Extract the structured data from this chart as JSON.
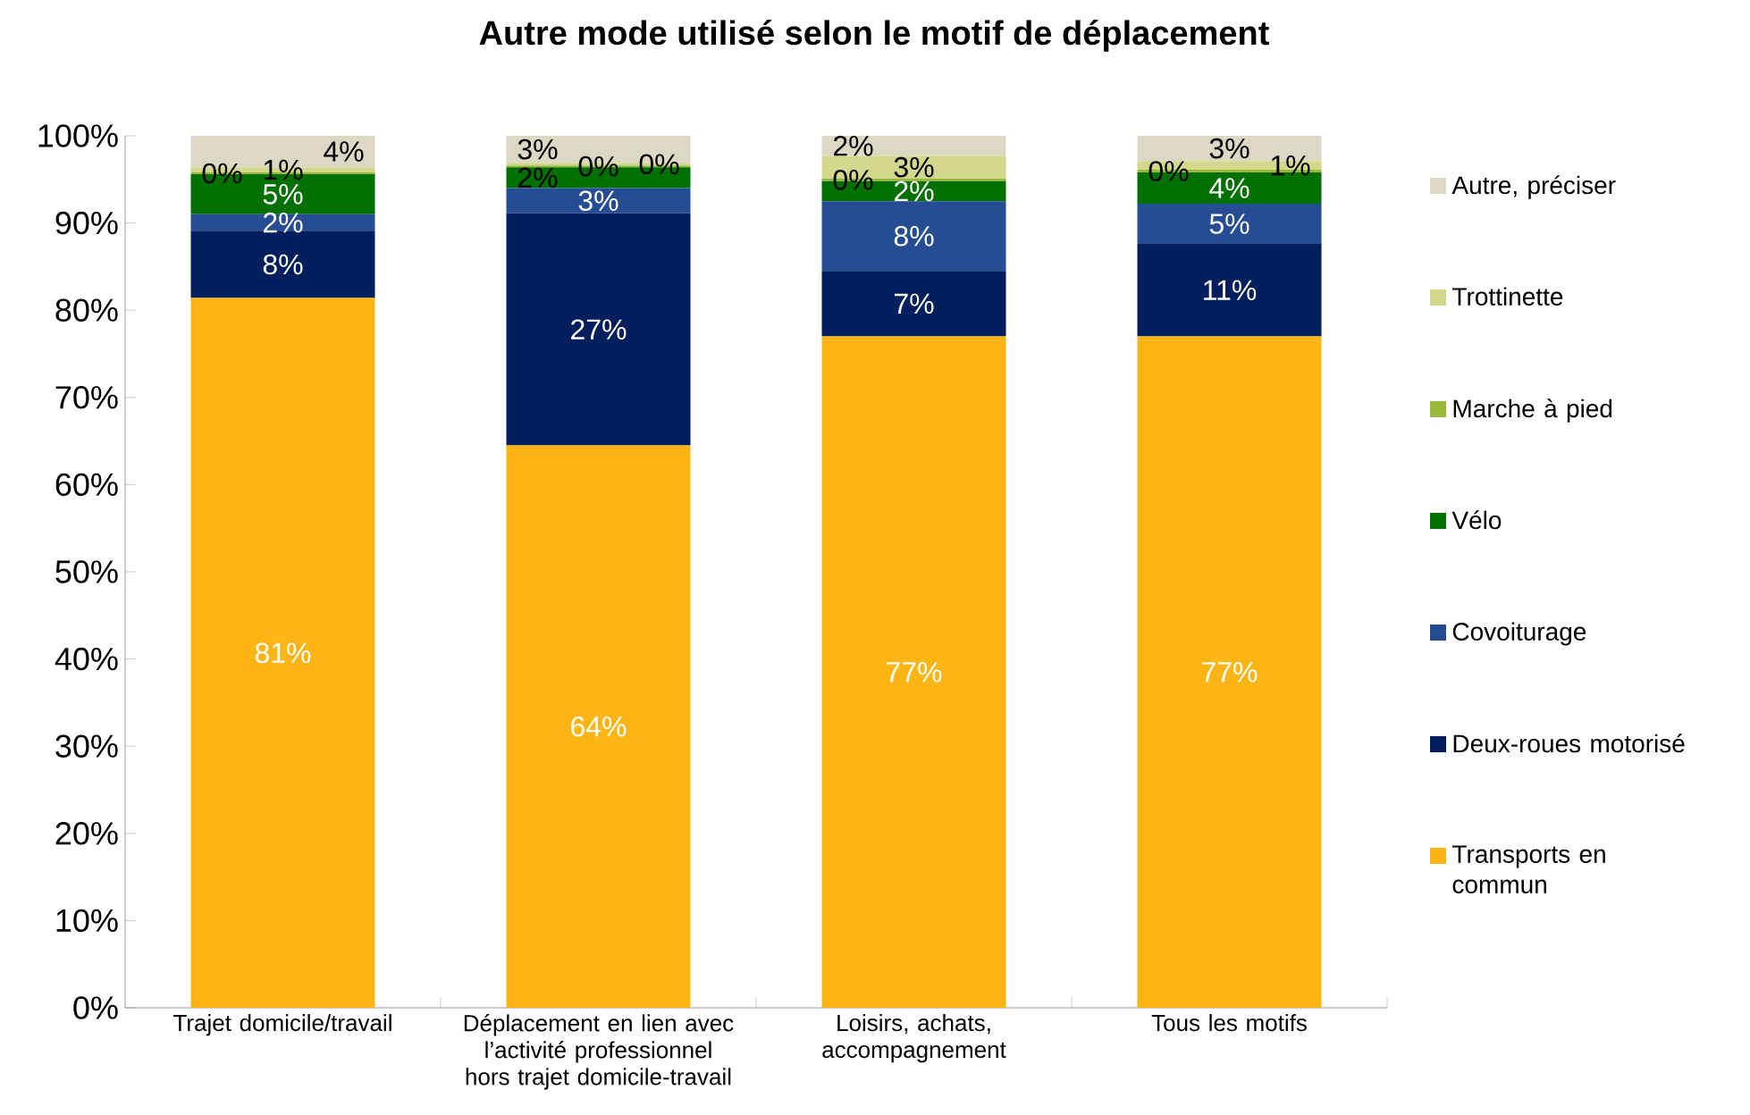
{
  "chart_data": {
    "type": "bar",
    "stacked": true,
    "title": "Autre mode utilisé selon le motif de déplacement",
    "categories": [
      "Trajet domicile/travail",
      "Déplacement en lien avec l’activité professionnel hors trajet domicile-travail",
      "Loisirs, achats, accompagnement",
      "Tous les motifs"
    ],
    "series": [
      {
        "name": "Transports en commun",
        "color": "#fdb515",
        "values": [
          81.4,
          64.5,
          77,
          77
        ],
        "value_labels": [
          "81%",
          "64%",
          "77%",
          "77%"
        ]
      },
      {
        "name": "Deux-roues motorisé",
        "color": "#001f5c",
        "values": [
          7.7,
          26.6,
          7.5,
          10.6
        ],
        "value_labels": [
          "8%",
          "27%",
          "7%",
          "11%"
        ]
      },
      {
        "name": "Covoiturage",
        "color": "#264d94",
        "values": [
          1.9,
          2.9,
          8,
          4.6
        ],
        "value_labels": [
          "2%",
          "3%",
          "8%",
          "5%"
        ]
      },
      {
        "name": "Vélo",
        "color": "#007000",
        "values": [
          4.6,
          2.4,
          2.3,
          3.6
        ],
        "value_labels": [
          "5%",
          "2%",
          "2%",
          "4%"
        ]
      },
      {
        "name": "Marche à pied",
        "color": "#9ab837",
        "values": [
          0.2,
          0.2,
          0.3,
          0.3
        ],
        "value_labels": [
          "0%",
          "0%",
          "0%",
          "0%"
        ]
      },
      {
        "name": "Trottinette",
        "color": "#d4d88e",
        "values": [
          0.6,
          0.3,
          2.6,
          1.0
        ],
        "value_labels": [
          "1%",
          "0%",
          "3%",
          "1%"
        ]
      },
      {
        "name": "Autre, préciser",
        "color": "#ddd8c4",
        "values": [
          3.6,
          3.1,
          2.3,
          2.9
        ],
        "value_labels": [
          "4%",
          "3%",
          "2%",
          "3%"
        ]
      }
    ],
    "ylim": [
      0,
      100
    ],
    "yticks": [
      {
        "value": 0,
        "label": "0%"
      },
      {
        "value": 10,
        "label": "10%"
      },
      {
        "value": 20,
        "label": "20%"
      },
      {
        "value": 30,
        "label": "30%"
      },
      {
        "value": 40,
        "label": "40%"
      },
      {
        "value": 50,
        "label": "50%"
      },
      {
        "value": 60,
        "label": "60%"
      },
      {
        "value": 70,
        "label": "70%"
      },
      {
        "value": 80,
        "label": "80%"
      },
      {
        "value": 90,
        "label": "90%"
      },
      {
        "value": 100,
        "label": "100%"
      }
    ],
    "legend": "right"
  }
}
